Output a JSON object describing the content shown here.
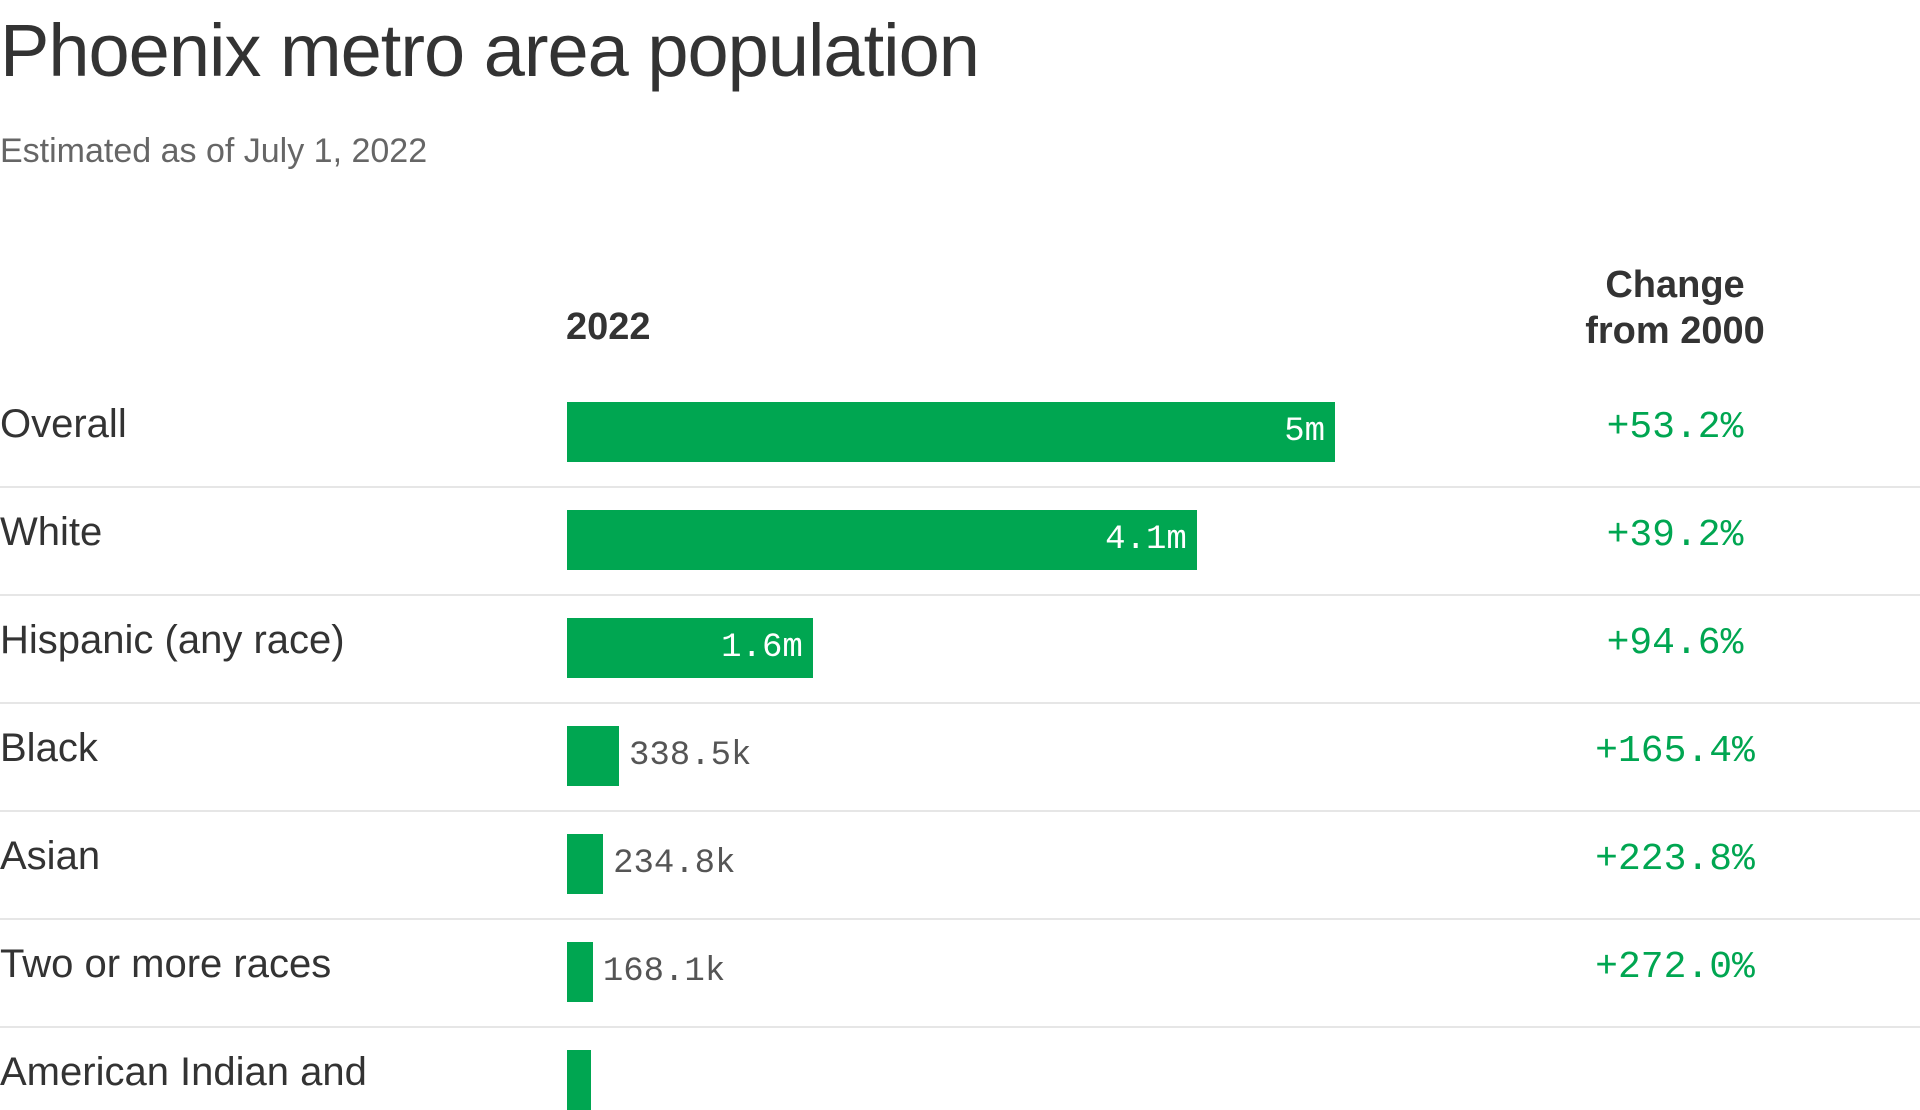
{
  "title": "Phoenix metro area population",
  "subtitle": "Estimated as of July 1, 2022",
  "columns": {
    "year": "2022",
    "change": [
      "Change",
      "from 2000"
    ]
  },
  "colors": {
    "bar": "#00a651",
    "change_text": "#00a651",
    "divider": "#e6e6e6"
  },
  "chart_data": {
    "type": "bar",
    "orientation": "horizontal",
    "categories": [
      "Overall",
      "White",
      "Hispanic (any race)",
      "Black",
      "Asian",
      "Two or more races",
      "American Indian and"
    ],
    "values": [
      5000000,
      4100000,
      1600000,
      338500,
      234800,
      168100,
      null
    ],
    "value_labels": [
      "5m",
      "4.1m",
      "1.6m",
      "338.5k",
      "234.8k",
      "168.1k",
      ""
    ],
    "change_from_2000": [
      "+53.2%",
      "+39.2%",
      "+94.6%",
      "+165.4%",
      "+223.8%",
      "+272.0%",
      ""
    ]
  }
}
